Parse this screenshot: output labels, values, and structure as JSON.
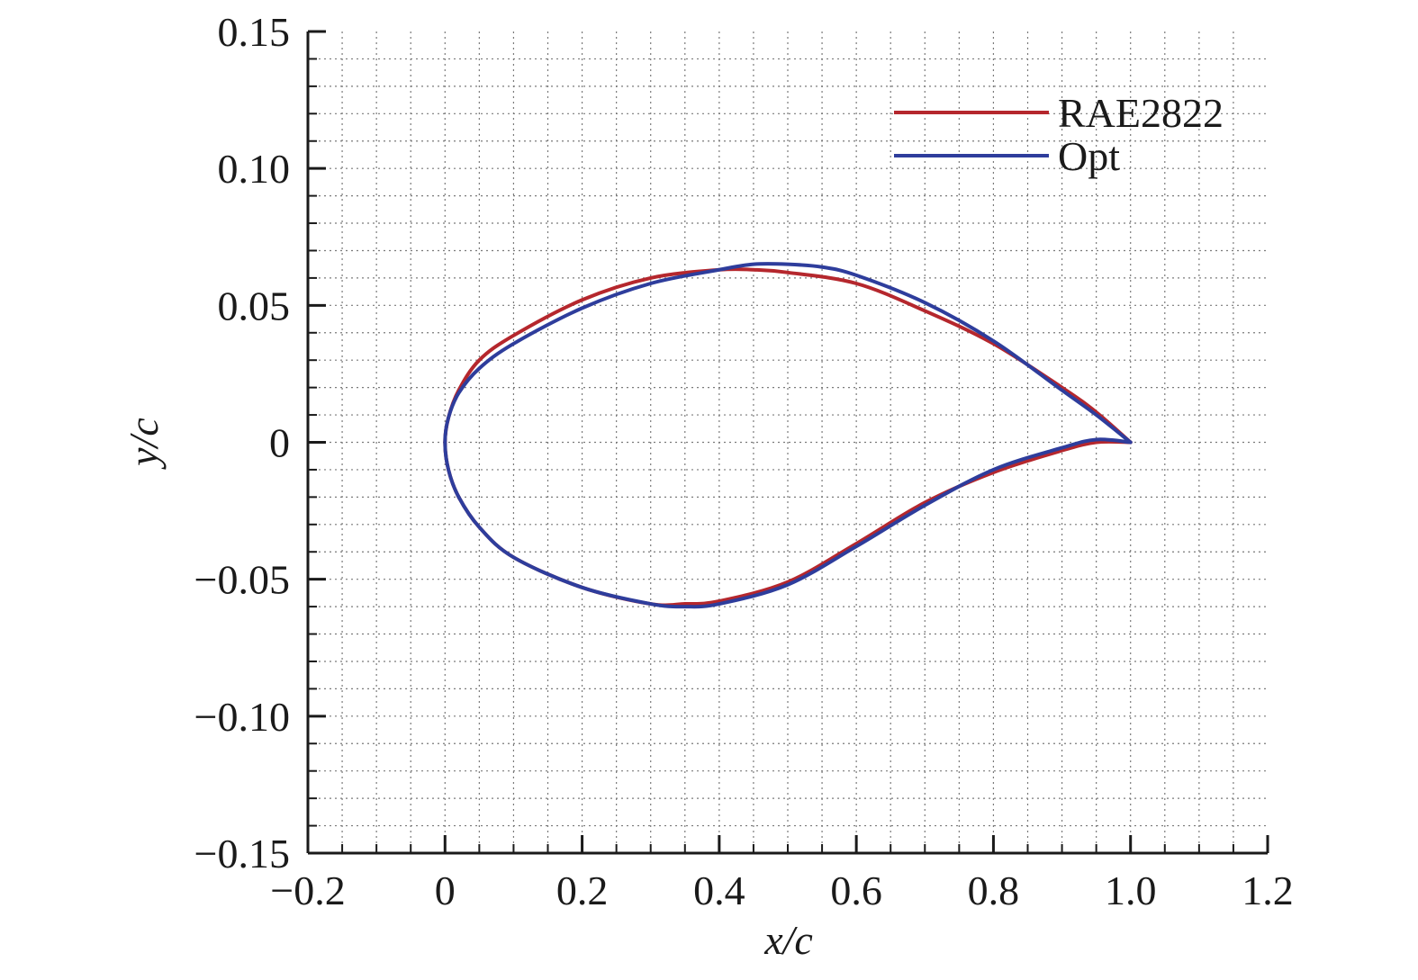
{
  "chart_data": {
    "type": "line",
    "xlabel": "x/c",
    "ylabel": "y/c",
    "xlim": [
      -0.2,
      1.2
    ],
    "ylim": [
      -0.15,
      0.15
    ],
    "x_ticks": [
      -0.2,
      0,
      0.2,
      0.4,
      0.6,
      0.8,
      1.0,
      1.2
    ],
    "x_tick_labels": [
      "−0.2",
      "0",
      "0.2",
      "0.4",
      "0.6",
      "0.8",
      "1.0",
      "1.2"
    ],
    "y_ticks": [
      -0.15,
      -0.1,
      -0.05,
      0,
      0.05,
      0.1,
      0.15
    ],
    "y_tick_labels": [
      "−0.15",
      "−0.10",
      "−0.05",
      "0",
      "0.05",
      "0.10",
      "0.15"
    ],
    "grid": true,
    "legend_position": "top-right",
    "series": [
      {
        "name": "RAE2822",
        "color": "#b5272d",
        "x": [
          1.0,
          0.95,
          0.9,
          0.8,
          0.7,
          0.6,
          0.5,
          0.45,
          0.4,
          0.3,
          0.2,
          0.1,
          0.05,
          0.02,
          0.005,
          0.0,
          0.005,
          0.02,
          0.05,
          0.1,
          0.2,
          0.3,
          0.35,
          0.4,
          0.5,
          0.6,
          0.7,
          0.8,
          0.9,
          0.95,
          1.0
        ],
        "y": [
          0.0,
          0.011,
          0.02,
          0.036,
          0.048,
          0.058,
          0.062,
          0.063,
          0.063,
          0.06,
          0.052,
          0.039,
          0.03,
          0.019,
          0.009,
          0.0,
          -0.01,
          -0.02,
          -0.031,
          -0.042,
          -0.053,
          -0.059,
          -0.059,
          -0.058,
          -0.051,
          -0.037,
          -0.022,
          -0.011,
          -0.003,
          0.0,
          0.0
        ]
      },
      {
        "name": "Opt",
        "color": "#2e3d9c",
        "x": [
          1.0,
          0.95,
          0.9,
          0.8,
          0.7,
          0.6,
          0.55,
          0.5,
          0.45,
          0.4,
          0.3,
          0.2,
          0.1,
          0.05,
          0.02,
          0.005,
          0.0,
          0.005,
          0.02,
          0.05,
          0.1,
          0.2,
          0.3,
          0.35,
          0.4,
          0.5,
          0.6,
          0.7,
          0.8,
          0.9,
          0.95,
          1.0
        ],
        "y": [
          0.0,
          0.01,
          0.019,
          0.037,
          0.051,
          0.061,
          0.064,
          0.065,
          0.065,
          0.063,
          0.058,
          0.049,
          0.036,
          0.027,
          0.018,
          0.009,
          0.0,
          -0.01,
          -0.02,
          -0.031,
          -0.042,
          -0.053,
          -0.059,
          -0.06,
          -0.059,
          -0.052,
          -0.038,
          -0.023,
          -0.01,
          -0.002,
          0.001,
          0.0
        ]
      }
    ]
  }
}
